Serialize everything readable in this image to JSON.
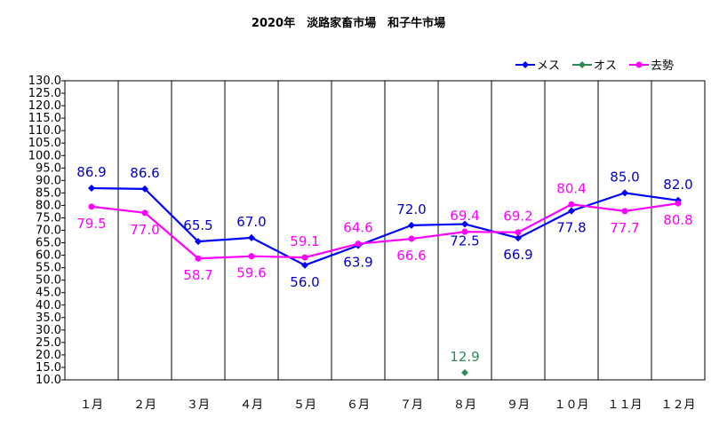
{
  "chart_data": {
    "type": "line",
    "title": "2020年　淡路家畜市場　和子牛市場",
    "categories": [
      "１月",
      "２月",
      "３月",
      "４月",
      "５月",
      "６月",
      "７月",
      "８月",
      "９月",
      "１０月",
      "１１月",
      "１２月"
    ],
    "ylim": [
      10.0,
      130.0
    ],
    "ytick_step": 5,
    "yticks": [
      "130.0",
      "125.0",
      "120.0",
      "115.0",
      "110.0",
      "105.0",
      "100.0",
      "95.0",
      "90.0",
      "85.0",
      "80.0",
      "75.0",
      "70.0",
      "65.0",
      "60.0",
      "55.0",
      "50.0",
      "45.0",
      "40.0",
      "35.0",
      "30.0",
      "25.0",
      "20.0",
      "15.0",
      "10.0"
    ],
    "grid": "vertical",
    "legend_position": "top-right",
    "series": [
      {
        "name": "メス",
        "color": "#0000ff",
        "label_color": "#0000cc",
        "marker": "diamond",
        "values": [
          86.9,
          86.6,
          65.5,
          67.0,
          56.0,
          63.9,
          72.0,
          72.5,
          66.9,
          77.8,
          85.0,
          82.0
        ],
        "labels": [
          "86.9",
          "86.6",
          "65.5",
          "67.0",
          "56.0",
          "63.9",
          "72.0",
          "72.5",
          "66.9",
          "77.8",
          "85.0",
          "82.0"
        ],
        "label_side": [
          "above",
          "above",
          "above",
          "above",
          "below",
          "below",
          "above",
          "below",
          "below",
          "below",
          "above",
          "above"
        ]
      },
      {
        "name": "オス",
        "color": "#2e8b57",
        "label_color": "#2e8b57",
        "marker": "diamond",
        "values": [
          null,
          null,
          null,
          null,
          null,
          null,
          null,
          12.9,
          null,
          null,
          null,
          null
        ],
        "labels": [
          "",
          "",
          "",
          "",
          "",
          "",
          "",
          "12.9",
          "",
          "",
          "",
          ""
        ],
        "label_side": [
          "above",
          "above",
          "above",
          "above",
          "above",
          "above",
          "above",
          "above",
          "above",
          "above",
          "above",
          "above"
        ]
      },
      {
        "name": "去勢",
        "color": "#ff00ff",
        "label_color": "#ff00ff",
        "marker": "circle",
        "values": [
          79.5,
          77.0,
          58.7,
          59.6,
          59.1,
          64.6,
          66.6,
          69.4,
          69.2,
          80.4,
          77.7,
          80.8
        ],
        "labels": [
          "79.5",
          "77.0",
          "58.7",
          "59.6",
          "59.1",
          "64.6",
          "66.6",
          "69.4",
          "69.2",
          "80.4",
          "77.7",
          "80.8"
        ],
        "label_side": [
          "below",
          "below",
          "below",
          "below",
          "above",
          "above",
          "below",
          "above",
          "above",
          "above",
          "below",
          "below"
        ]
      }
    ]
  }
}
